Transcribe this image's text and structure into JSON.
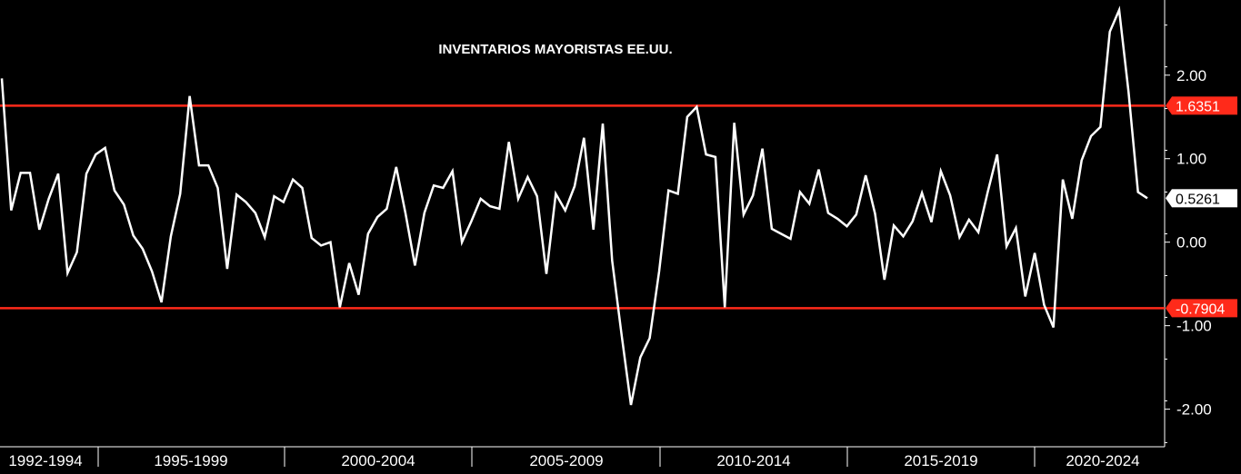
{
  "chart_data": {
    "type": "line",
    "title": "INVENTARIOS MAYORISTAS EE.UU.",
    "xlabel": "",
    "ylabel": "",
    "ylim": [
      -2.45,
      2.9
    ],
    "y_ticks": [
      {
        "value": 2.0,
        "label": "2.00"
      },
      {
        "value": 1.0,
        "label": "1.00"
      },
      {
        "value": 0.0,
        "label": "0.00"
      },
      {
        "value": -1.0,
        "label": "-1.00"
      },
      {
        "value": -2.0,
        "label": "-2.00"
      }
    ],
    "x_period_labels": [
      "1992-1994",
      "1995-1999",
      "2000-2004",
      "2005-2009",
      "2010-2014",
      "2015-2019",
      "2020-2024"
    ],
    "reference_lines": [
      {
        "value": 1.6351,
        "label": "1.6351",
        "color": "#ff2a1a"
      },
      {
        "value": -0.7904,
        "label": "-0.7904",
        "color": "#ff2a1a"
      }
    ],
    "last_value": {
      "value": 0.5261,
      "label": "0.5261"
    },
    "grid": false,
    "legend": "none",
    "series": [
      {
        "color": "#ffffff",
        "values": [
          1.96,
          0.38,
          0.83,
          0.83,
          0.15,
          0.52,
          0.82,
          -0.37,
          -0.12,
          0.82,
          1.05,
          1.13,
          0.62,
          0.45,
          0.08,
          -0.08,
          -0.35,
          -0.72,
          0.07,
          0.58,
          1.75,
          0.92,
          0.92,
          0.65,
          -0.32,
          0.57,
          0.48,
          0.35,
          0.06,
          0.55,
          0.48,
          0.75,
          0.65,
          0.05,
          -0.04,
          0.0,
          -0.78,
          -0.25,
          -0.63,
          0.1,
          0.3,
          0.4,
          0.9,
          0.34,
          -0.28,
          0.35,
          0.68,
          0.65,
          0.85,
          0.0,
          0.25,
          0.52,
          0.43,
          0.4,
          1.2,
          0.52,
          0.78,
          0.55,
          -0.38,
          0.58,
          0.38,
          0.67,
          1.25,
          0.15,
          1.42,
          -0.22,
          -1.1,
          -1.95,
          -1.38,
          -1.15,
          -0.35,
          0.62,
          0.58,
          1.5,
          1.62,
          1.05,
          1.02,
          -0.78,
          1.43,
          0.33,
          0.56,
          1.12,
          0.16,
          0.1,
          0.04,
          0.6,
          0.46,
          0.87,
          0.35,
          0.28,
          0.19,
          0.33,
          0.8,
          0.34,
          -0.45,
          0.2,
          0.07,
          0.25,
          0.59,
          0.24,
          0.85,
          0.56,
          0.06,
          0.27,
          0.12,
          0.6,
          1.05,
          -0.05,
          0.17,
          -0.65,
          -0.13,
          -0.75,
          -1.02,
          0.75,
          0.28,
          0.98,
          1.27,
          1.38,
          2.52,
          2.78,
          1.8,
          0.6,
          0.5261
        ]
      }
    ]
  }
}
